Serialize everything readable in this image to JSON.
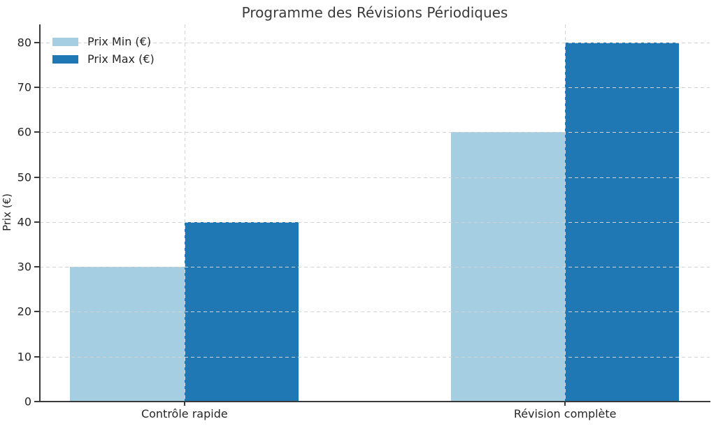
{
  "chart_data": {
    "type": "bar",
    "title": "Programme des Révisions Périodiques",
    "xlabel": "",
    "ylabel": "Prix (€)",
    "categories": [
      "Contrôle rapide",
      "Révision complète"
    ],
    "series": [
      {
        "name": "Prix Min (€)",
        "color": "#a6cee3",
        "values": [
          30,
          60
        ]
      },
      {
        "name": "Prix Max (€)",
        "color": "#1f77b4",
        "values": [
          40,
          80
        ]
      }
    ],
    "ylim": [
      0,
      84
    ],
    "yticks": [
      0,
      10,
      20,
      30,
      40,
      50,
      60,
      70,
      80
    ],
    "grid": "dashed gridlines on both axes, drawn above bars",
    "legend_position": "upper left, no frame",
    "colors": {
      "grid": "#d2d2d2",
      "spine": "#3a3a3a",
      "text": "#262626"
    }
  }
}
